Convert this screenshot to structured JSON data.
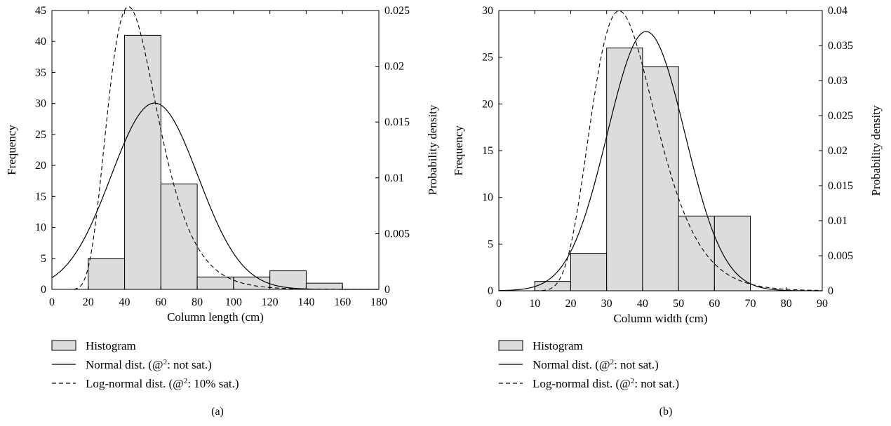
{
  "chart_data": [
    {
      "type": "bar",
      "panel_label": "(a)",
      "xlabel": "Column length (cm)",
      "ylabel": "Frequency",
      "y2label": "Probability density",
      "xlim": [
        0,
        180
      ],
      "ylim": [
        0,
        45
      ],
      "y2lim": [
        0,
        0.025
      ],
      "xticks": [
        "0",
        "20",
        "40",
        "60",
        "80",
        "100",
        "120",
        "140",
        "160",
        "180"
      ],
      "yticks": [
        "0",
        "5",
        "10",
        "15",
        "20",
        "25",
        "30",
        "35",
        "40",
        "45"
      ],
      "y2ticks": [
        "0",
        "0.005",
        "0.01",
        "0.015",
        "0.02",
        "0.025"
      ],
      "bins": [
        {
          "from": 20,
          "to": 40,
          "count": 5
        },
        {
          "from": 40,
          "to": 60,
          "count": 41
        },
        {
          "from": 60,
          "to": 80,
          "count": 17
        },
        {
          "from": 80,
          "to": 100,
          "count": 2
        },
        {
          "from": 100,
          "to": 120,
          "count": 2
        },
        {
          "from": 120,
          "to": 140,
          "count": 3
        },
        {
          "from": 140,
          "to": 160,
          "count": 1
        }
      ],
      "normal": {
        "mean": 56.5,
        "sd": 24,
        "peak_density": 0.0167
      },
      "lognormal": {
        "mode": 47,
        "sigma": 0.33,
        "peak_density": 0.024
      },
      "legend": [
        {
          "style": "box",
          "label": "Histogram"
        },
        {
          "style": "solid",
          "label": "Normal dist. (@",
          "sup": "2",
          "label_tail": ": not sat.)"
        },
        {
          "style": "dashed",
          "label": "Log-normal dist. (@",
          "sup": "2",
          "label_tail": ": 10% sat.)"
        }
      ],
      "grid": false
    },
    {
      "type": "bar",
      "panel_label": "(b)",
      "xlabel": "Column width (cm)",
      "ylabel": "Frequency",
      "y2label": "Probability density",
      "xlim": [
        0,
        90
      ],
      "ylim": [
        0,
        30
      ],
      "y2lim": [
        0,
        0.04
      ],
      "xticks": [
        "0",
        "10",
        "20",
        "30",
        "40",
        "50",
        "60",
        "70",
        "80",
        "90"
      ],
      "yticks": [
        "0",
        "5",
        "10",
        "15",
        "20",
        "25",
        "30"
      ],
      "y2ticks": [
        "0",
        "0.005",
        "0.01",
        "0.015",
        "0.02",
        "0.025",
        "0.03",
        "0.035",
        "0.04"
      ],
      "bins": [
        {
          "from": 10,
          "to": 20,
          "count": 1
        },
        {
          "from": 20,
          "to": 30,
          "count": 4
        },
        {
          "from": 30,
          "to": 40,
          "count": 26
        },
        {
          "from": 40,
          "to": 50,
          "count": 24
        },
        {
          "from": 50,
          "to": 60,
          "count": 8
        },
        {
          "from": 60,
          "to": 70,
          "count": 8
        }
      ],
      "normal": {
        "mean": 41,
        "sd": 10.8,
        "peak_density": 0.037
      },
      "lognormal": {
        "mode": 36,
        "sigma": 0.27,
        "peak_density": 0.0385
      },
      "legend": [
        {
          "style": "box",
          "label": "Histogram"
        },
        {
          "style": "solid",
          "label": "Normal dist. (@",
          "sup": "2",
          "label_tail": ": not sat.)"
        },
        {
          "style": "dashed",
          "label": "Log-normal dist. (@",
          "sup": "2",
          "label_tail": ": not sat.)"
        }
      ],
      "grid": false
    }
  ]
}
